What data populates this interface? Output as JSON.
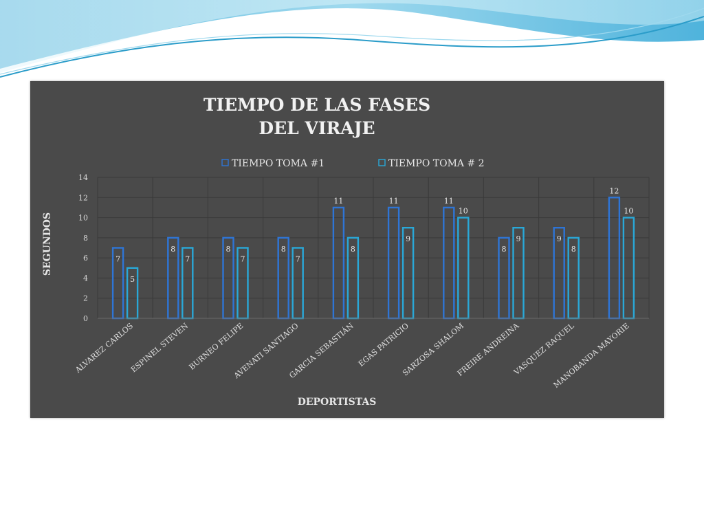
{
  "chart_data": {
    "type": "bar",
    "title": "TIEMPO DE LAS FASES DEL VIRAJE",
    "title_lines": [
      "TIEMPO DE LAS FASES",
      "DEL VIRAJE"
    ],
    "xlabel": "DEPORTISTAS",
    "ylabel": "SEGUNDOS",
    "ylim": [
      0,
      14
    ],
    "yticks": [
      0,
      2,
      4,
      6,
      8,
      10,
      12,
      14
    ],
    "grid": true,
    "legend_position": "top",
    "categories": [
      "ALVAREZ CARLOS",
      "ESPINEL STEVEN",
      "BURNEO FELIPE",
      "AVENATI SANTIAGO",
      "GARCIA SEBASTIÁN",
      "EGAS PATRICIO",
      "SARZOSA SHALOM",
      "FREIRE ANDREINA",
      "VASQUEZ RAQUEL",
      "MANOBANDA MAYORIE"
    ],
    "series": [
      {
        "name": "TIEMPO TOMA #1",
        "color": "#2e75d6",
        "values": [
          7,
          8,
          8,
          8,
          11,
          11,
          11,
          8,
          9,
          12
        ]
      },
      {
        "name": "TIEMPO TOMA # 2",
        "color": "#29a8d8",
        "values": [
          5,
          7,
          7,
          7,
          8,
          9,
          10,
          9,
          8,
          10
        ]
      }
    ]
  },
  "colors": {
    "panel_bg": "#4a4a4a",
    "gridline": "#3a3a3a",
    "wave_light": "#bfe6f2",
    "wave_mid": "#6ec6e4",
    "wave_dark": "#2a9cc9"
  }
}
